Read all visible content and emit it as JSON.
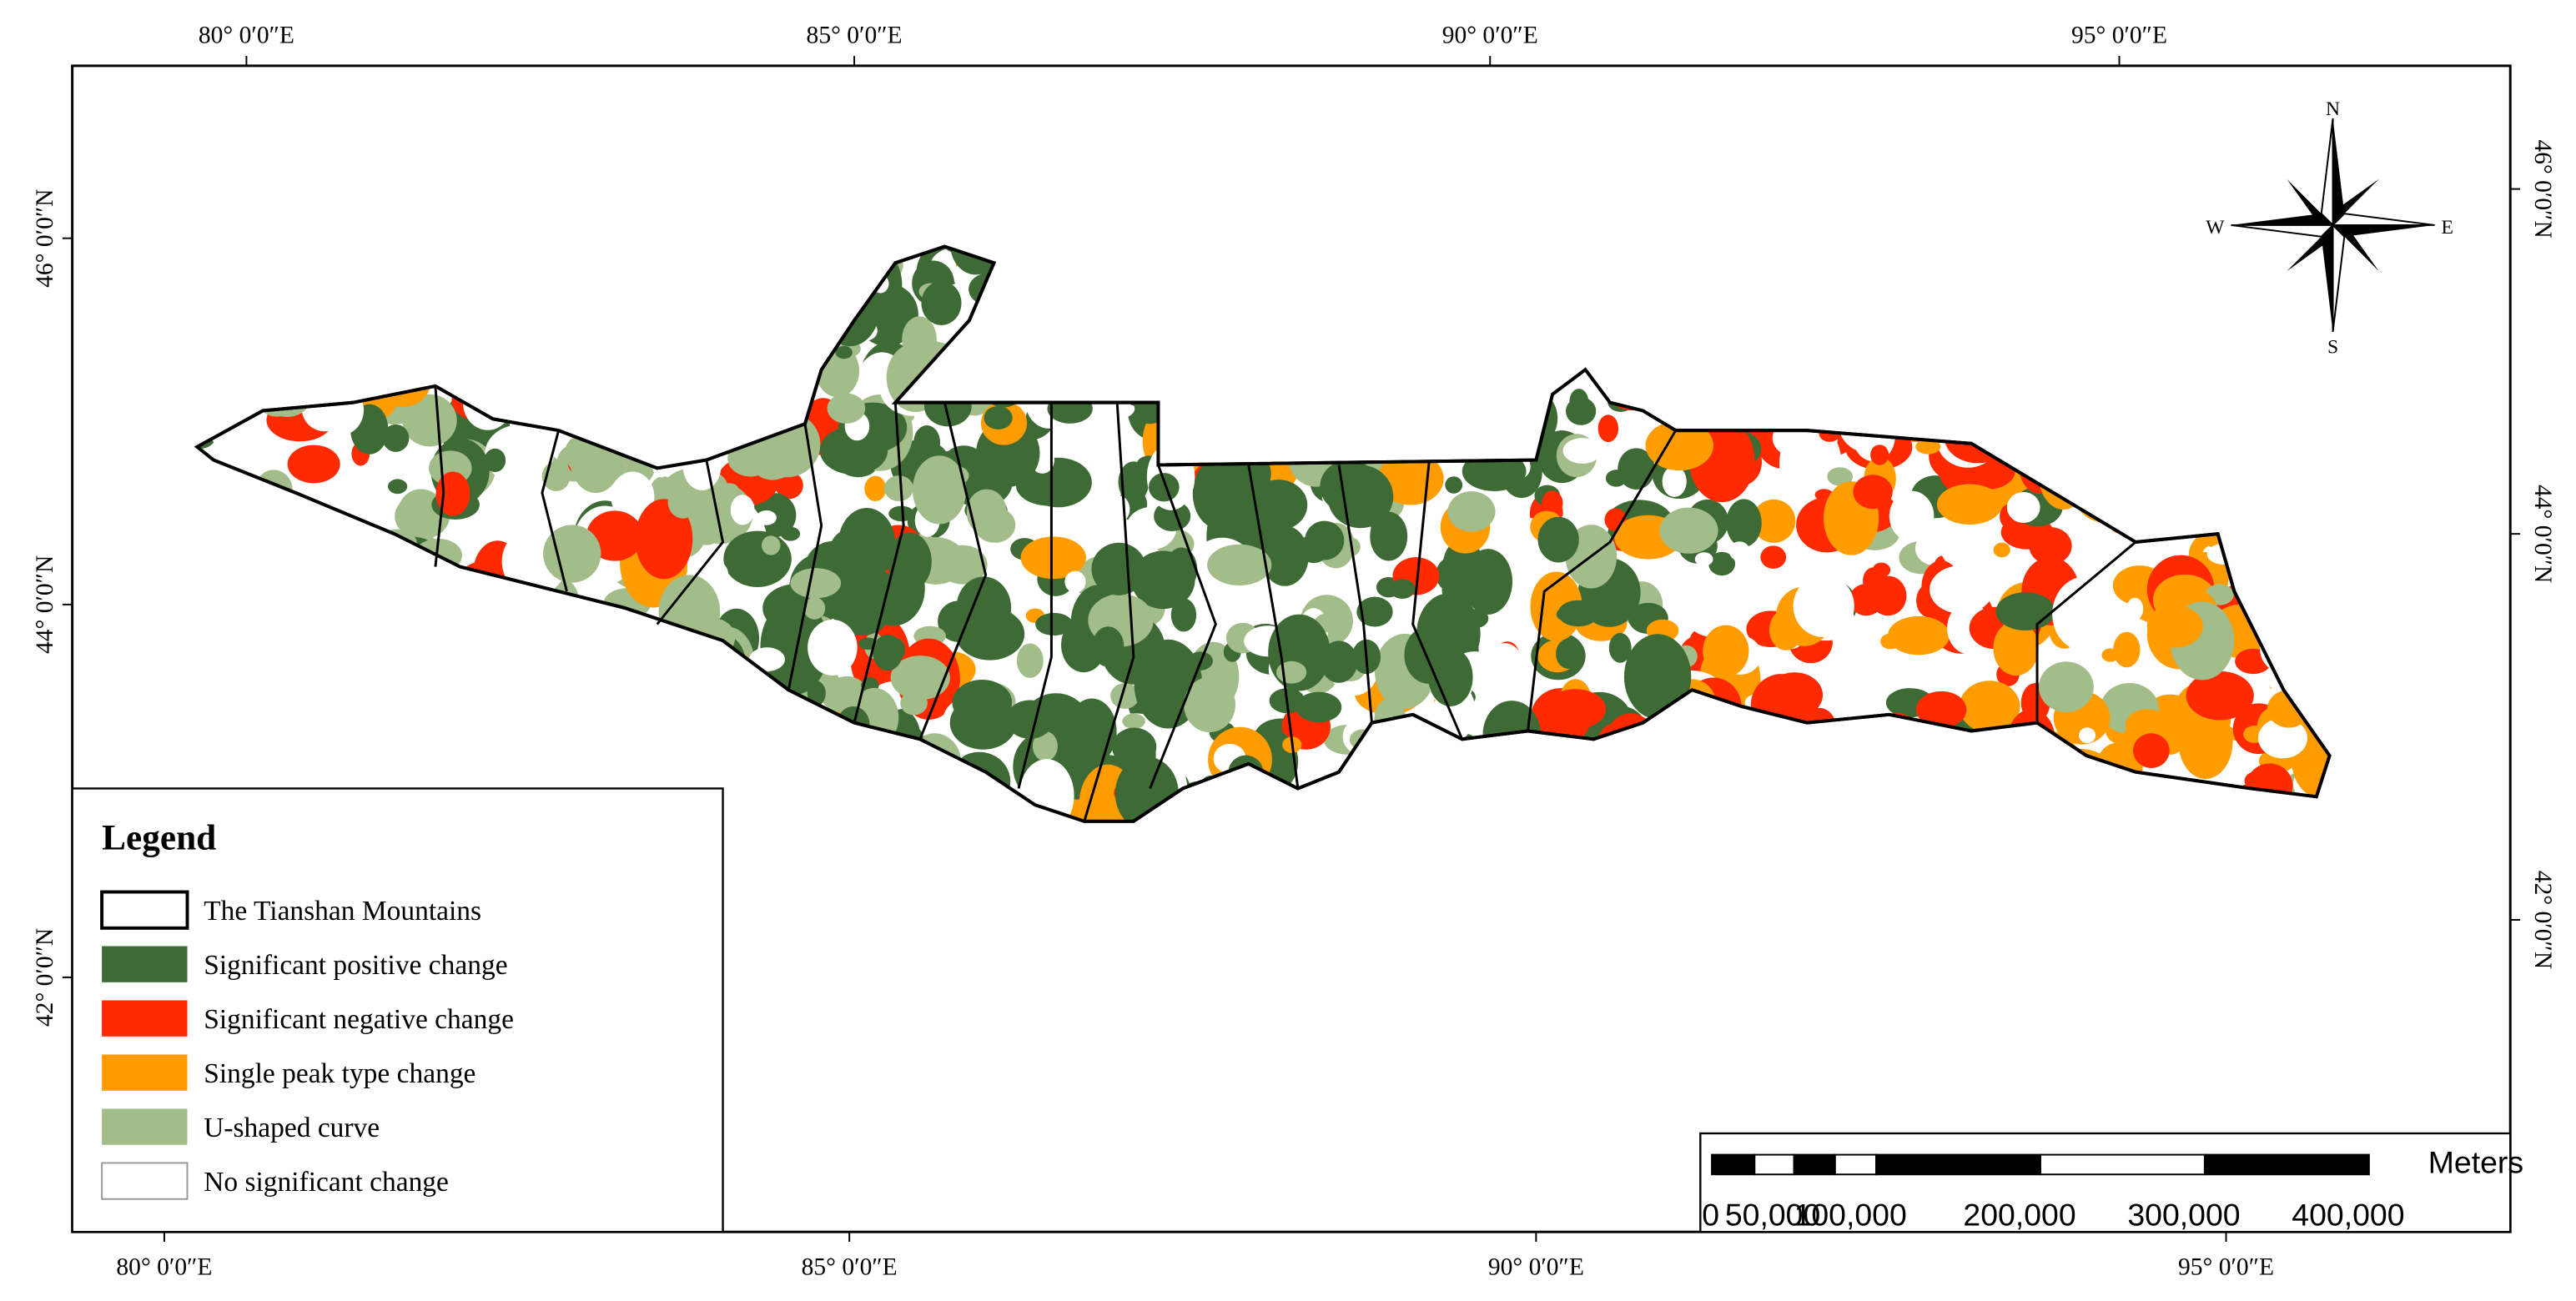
{
  "map": {
    "top_labels": [
      "80° 0′0″E",
      "85° 0′0″E",
      "90° 0′0″E",
      "95° 0′0″E"
    ],
    "bottom_labels": [
      "80° 0′0″E",
      "85° 0′0″E",
      "90° 0′0″E",
      "95° 0′0″E"
    ],
    "left_labels": [
      "46° 0′0″N",
      "44° 0′0″N",
      "42° 0′0″N"
    ],
    "right_labels": [
      "46° 0′0″N",
      "44° 0′0″N",
      "42° 0′0″N"
    ],
    "compass": {
      "n": "N",
      "s": "S",
      "e": "E",
      "w": "W"
    },
    "legend": {
      "title": "Legend",
      "items": [
        {
          "label": "The Tianshan Mountains",
          "color": "#ffffff"
        },
        {
          "label": "Significant positive change",
          "color": "#3e6b35"
        },
        {
          "label": "Significant negative change",
          "color": "#ff2a00"
        },
        {
          "label": "Single peak type change",
          "color": "#ff9c00"
        },
        {
          "label": "U-shaped curve",
          "color": "#a3bd8a"
        },
        {
          "label": "No significant change",
          "color": "#ffffff"
        }
      ]
    },
    "scale_bar": {
      "unit": "Meters",
      "labels": [
        "0",
        "50,000",
        "100,000",
        "200,000",
        "300,000",
        "400,000"
      ]
    }
  }
}
